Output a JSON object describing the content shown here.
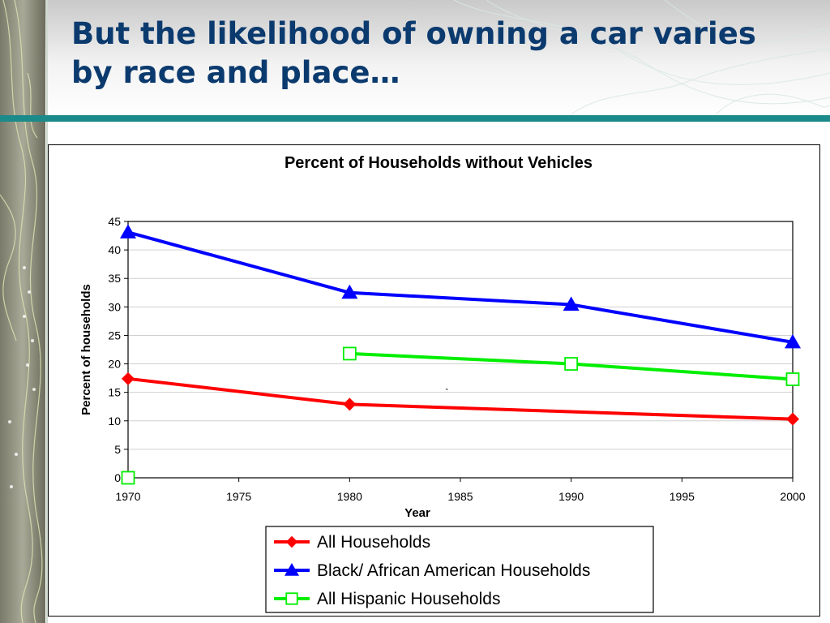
{
  "slide": {
    "title_line1": "But the likelihood of owning a car varies",
    "title_line2": "by race and place…",
    "colors": {
      "title": "#0b3a6e",
      "rule": "#1b8a8a"
    }
  },
  "chart_data": {
    "type": "line",
    "title": "Percent of Households without Vehicles",
    "xlabel": "Year",
    "ylabel": "Percent of households",
    "xlim": [
      1970,
      2000
    ],
    "ylim": [
      0,
      45
    ],
    "x_ticks": [
      "1970",
      "1975",
      "1980",
      "1985",
      "1990",
      "1995",
      "2000"
    ],
    "y_ticks": [
      "0",
      "5",
      "10",
      "15",
      "20",
      "25",
      "30",
      "35",
      "40",
      "45"
    ],
    "grid": true,
    "legend_position": "bottom-center",
    "annotation": "`",
    "series": [
      {
        "name": "All Households",
        "color": "#ff0000",
        "marker": "diamond",
        "points": [
          [
            1970,
            17.4
          ],
          [
            1980,
            12.9
          ],
          [
            2000,
            10.3
          ]
        ]
      },
      {
        "name": "Black/ African American Households",
        "color": "#0000ff",
        "marker": "triangle",
        "points": [
          [
            1970,
            43.1
          ],
          [
            1980,
            32.5
          ],
          [
            1990,
            30.4
          ],
          [
            2000,
            23.8
          ]
        ]
      },
      {
        "name": "All Hispanic Households",
        "color": "#00ee00",
        "marker": "square-open",
        "points": [
          [
            1980,
            21.8
          ],
          [
            1990,
            20.0
          ],
          [
            2000,
            17.3
          ]
        ],
        "extra_points": [
          [
            1970,
            0
          ]
        ]
      }
    ]
  }
}
